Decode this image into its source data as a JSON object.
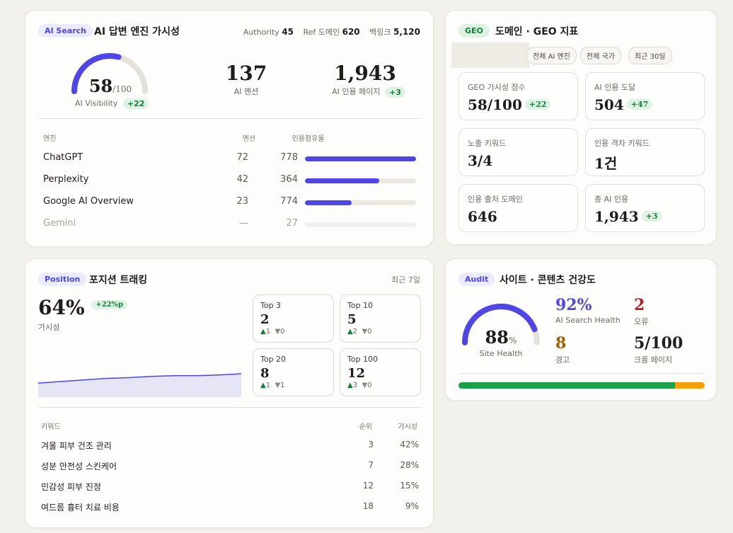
{
  "ai_card": {
    "pill": "AI Search",
    "title": "AI 답변 엔진 가시성",
    "meta": {
      "authority_label": "Authority",
      "authority_value": "45",
      "ref_label": "Ref 도메인",
      "ref_value": "620",
      "backlink_label": "백링크",
      "backlink_value": "5,120"
    },
    "gauge": {
      "value": "58",
      "max": "/100",
      "label": "AI Visibility",
      "delta": "+22",
      "fraction": 0.58
    },
    "mentions": {
      "value": "137",
      "label": "AI 멘션"
    },
    "pages": {
      "value": "1,943",
      "label": "AI 인용 페이지",
      "delta": "+3"
    },
    "table": {
      "headers": {
        "engine": "엔진",
        "mention": "멘션",
        "cite": "인용",
        "share": "점유율"
      },
      "rows": [
        {
          "name": "ChatGPT",
          "mention": "72",
          "cite": "778",
          "share": 1.0
        },
        {
          "name": "Perplexity",
          "mention": "42",
          "cite": "364",
          "share": 0.67
        },
        {
          "name": "Google AI Overview",
          "mention": "23",
          "cite": "774",
          "share": 0.42
        },
        {
          "name": "Gemini",
          "mention": "—",
          "cite": "27",
          "share": 0.0
        }
      ]
    }
  },
  "geo_card": {
    "pill": "GEO",
    "title": "도메인 · GEO 지표",
    "filters": [
      "전체 AI 엔진",
      "전체 국가",
      "최근 30일"
    ],
    "boxes": [
      {
        "label": "GEO 가시성 점수",
        "value": "58/100",
        "delta": "+22"
      },
      {
        "label": "AI 인용 도달",
        "value": "504",
        "delta": "+47"
      },
      {
        "label": "노출 키워드",
        "value": "3/4",
        "delta": ""
      },
      {
        "label": "인용 격차 키워드",
        "value": "1건",
        "delta": ""
      },
      {
        "label": "인용 출처 도메인",
        "value": "646",
        "delta": ""
      },
      {
        "label": "총 AI 인용",
        "value": "1,943",
        "delta": "+3"
      }
    ]
  },
  "position_card": {
    "pill": "Position",
    "title": "포지션 트래킹",
    "period": "최근 7일",
    "visibility": {
      "value": "64%",
      "delta": "+22%p",
      "label": "가시성"
    },
    "trend": [
      0.36,
      0.4,
      0.44,
      0.48,
      0.5,
      0.53,
      0.55,
      0.55,
      0.57,
      0.6
    ],
    "tops": [
      {
        "label": "Top 3",
        "value": "2",
        "up": "1",
        "down": "0"
      },
      {
        "label": "Top 10",
        "value": "5",
        "up": "2",
        "down": "0"
      },
      {
        "label": "Top 20",
        "value": "8",
        "up": "1",
        "down": "1"
      },
      {
        "label": "Top 100",
        "value": "12",
        "up": "3",
        "down": "0"
      }
    ],
    "table": {
      "headers": {
        "keyword": "키워드",
        "rank": "순위",
        "visibility": "가시성"
      },
      "rows": [
        {
          "keyword": "겨울 피부 건조 관리",
          "rank": "3",
          "vis": "42%"
        },
        {
          "keyword": "성분 안전성 스킨케어",
          "rank": "7",
          "vis": "28%"
        },
        {
          "keyword": "민감성 피부 진정",
          "rank": "12",
          "vis": "15%"
        },
        {
          "keyword": "여드름 흉터 치료 비용",
          "rank": "18",
          "vis": "9%"
        }
      ]
    }
  },
  "audit_card": {
    "pill": "Audit",
    "title": "사이트 · 콘텐츠 건강도",
    "gauge": {
      "value": "88",
      "unit": "%",
      "label": "Site Health",
      "fraction": 0.88
    },
    "metrics": {
      "ai_health": {
        "value": "92%",
        "label": "AI Search Health"
      },
      "errors": {
        "value": "2",
        "label": "오류"
      },
      "warnings": {
        "value": "8",
        "label": "경고"
      },
      "crawled": {
        "value": "5/100",
        "label": "크롤 페이지"
      }
    },
    "bar_fraction": 0.88,
    "colors": {
      "good": "#16a34a",
      "warn": "#f59e0b",
      "accent": "#4f46e5",
      "error": "#b4232a",
      "warning_text": "#a16207"
    }
  }
}
